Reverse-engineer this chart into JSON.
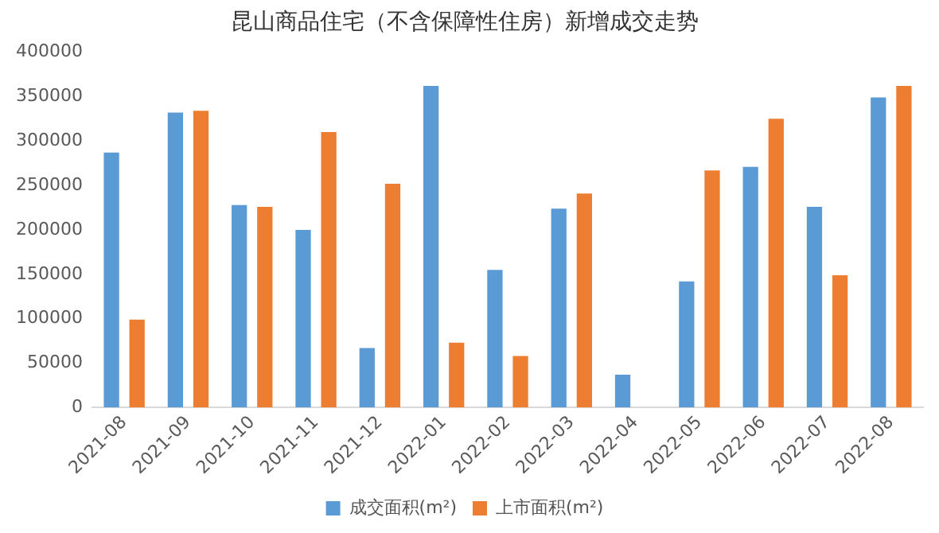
{
  "chart_data": {
    "type": "bar",
    "title": "昆山商品住宅（不含保障性住房）新增成交走势",
    "categories": [
      "2021-08",
      "2021-09",
      "2021-10",
      "2021-11",
      "2021-12",
      "2022-01",
      "2022-02",
      "2022-03",
      "2022-04",
      "2022-05",
      "2022-06",
      "2022-07",
      "2022-08"
    ],
    "series": [
      {
        "name": "成交面积(m²)",
        "color": "#5b9bd5",
        "values": [
          287000,
          332000,
          228000,
          200000,
          67000,
          362000,
          155000,
          224000,
          37000,
          142000,
          271000,
          226000,
          349000
        ]
      },
      {
        "name": "上市面积(m²)",
        "color": "#ed7d31",
        "values": [
          99000,
          334000,
          226000,
          310000,
          252000,
          73000,
          58000,
          241000,
          null,
          267000,
          325000,
          149000,
          362000
        ]
      }
    ],
    "ylim": [
      0,
      400000
    ],
    "yticks": [
      0,
      50000,
      100000,
      150000,
      200000,
      250000,
      300000,
      350000,
      400000
    ],
    "grid": false,
    "legend": "bottom"
  }
}
